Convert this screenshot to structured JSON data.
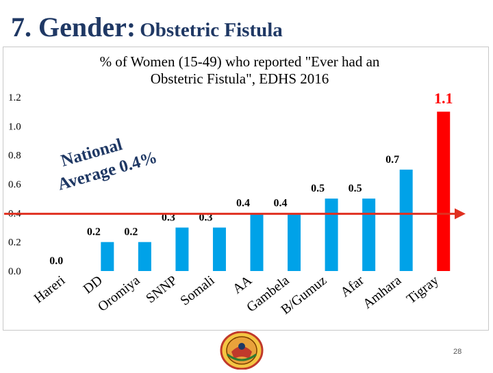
{
  "slide": {
    "title_main": "7. Gender:",
    "title_sub": "Obstetric Fistula",
    "page_number": "28",
    "average_label_line1": "National",
    "average_label_line2": "Average 0.4%",
    "colors": {
      "title": "#1f3864",
      "bar_regular": "#00a2e8",
      "bar_highlight": "#ff0000",
      "average_line": "#e03020",
      "highlight_label": "#ff0000"
    },
    "logo_icon": "emblem-logo"
  },
  "chart_data": {
    "type": "bar",
    "title_line1": "% of Women (15-49) who reported \"Ever had an",
    "title_line2": "Obstetric Fistula\", EDHS 2016",
    "categories": [
      "Hareri",
      "DD",
      "Oromiya",
      "SNNP",
      "Somali",
      "AA",
      "Gambela",
      "B/Gumuz",
      "Afar",
      "Amhara",
      "Tigray"
    ],
    "values": [
      0.0,
      0.2,
      0.2,
      0.3,
      0.3,
      0.4,
      0.4,
      0.5,
      0.5,
      0.7,
      1.1
    ],
    "data_labels": [
      "0.0",
      "0.2",
      "0.2",
      "0.3",
      "0.3",
      "0.4",
      "0.4",
      "0.5",
      "0.5",
      "0.7",
      "1.1"
    ],
    "highlight_category": "Tigray",
    "reference_line": 0.4,
    "ylim": [
      0,
      1.2
    ],
    "yticks": [
      "0.0",
      "0.2",
      "0.4",
      "0.6",
      "0.8",
      "1.0",
      "1.2"
    ],
    "grid": false,
    "xlabel": "",
    "ylabel": ""
  }
}
